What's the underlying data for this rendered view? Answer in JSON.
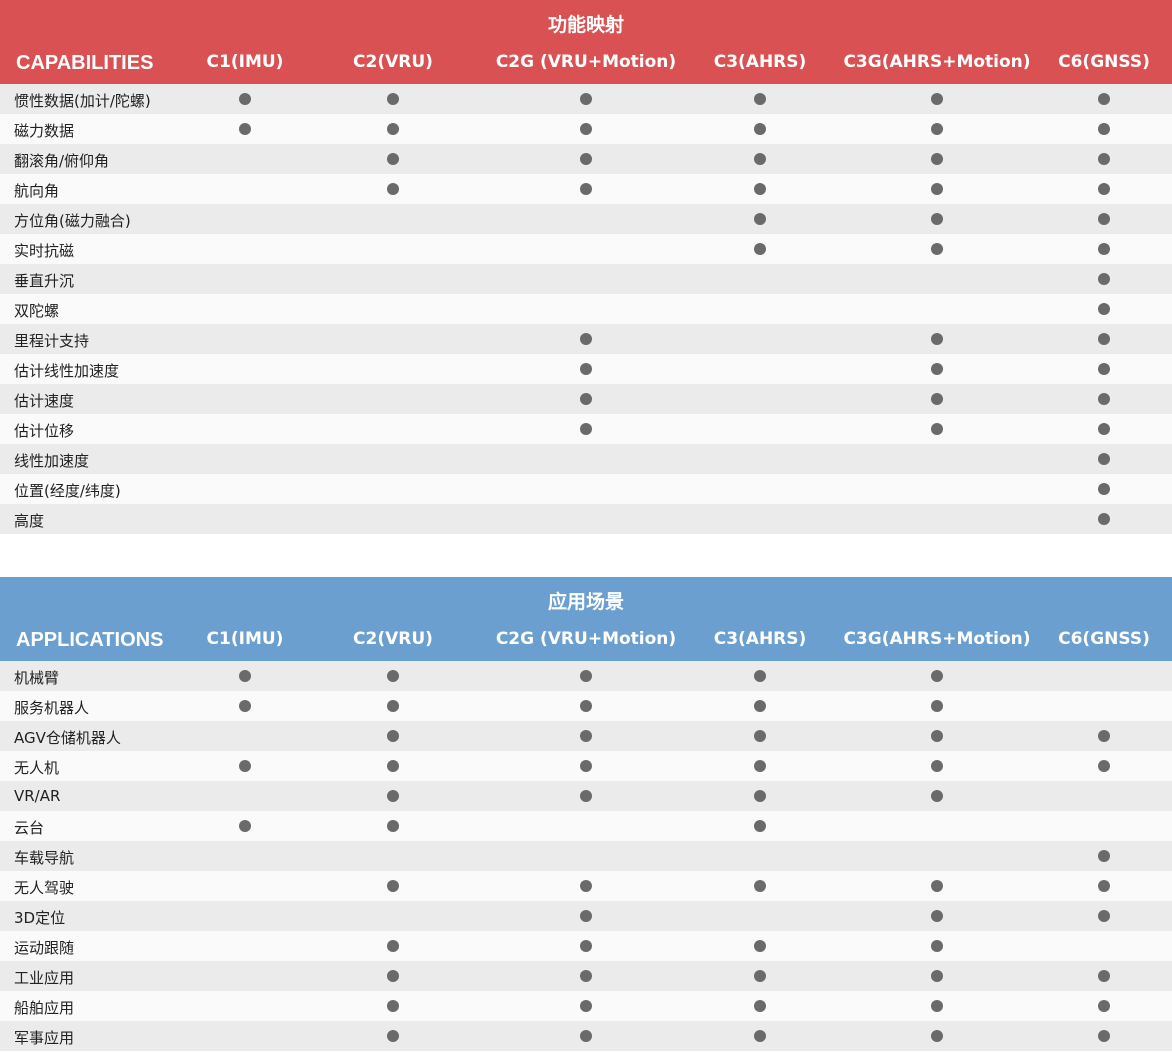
{
  "capabilities": {
    "title": "功能映射",
    "corner": "CAPABILITIES",
    "color": "#d95153",
    "columns": [
      "C1(IMU)",
      "C2(VRU)",
      "C2G (VRU+Motion)",
      "C3(AHRS)",
      "C3G(AHRS+Motion)",
      "C6(GNSS)"
    ],
    "rows": [
      {
        "label": "惯性数据(加计/陀螺)",
        "marks": [
          1,
          1,
          1,
          1,
          1,
          1
        ]
      },
      {
        "label": "磁力数据",
        "marks": [
          1,
          1,
          1,
          1,
          1,
          1
        ]
      },
      {
        "label": "翻滚角/俯仰角",
        "marks": [
          0,
          1,
          1,
          1,
          1,
          1
        ]
      },
      {
        "label": "航向角",
        "marks": [
          0,
          1,
          1,
          1,
          1,
          1
        ]
      },
      {
        "label": "方位角(磁力融合)",
        "marks": [
          0,
          0,
          0,
          1,
          1,
          1
        ]
      },
      {
        "label": "实时抗磁",
        "marks": [
          0,
          0,
          0,
          1,
          1,
          1
        ]
      },
      {
        "label": "垂直升沉",
        "marks": [
          0,
          0,
          0,
          0,
          0,
          1
        ]
      },
      {
        "label": "双陀螺",
        "marks": [
          0,
          0,
          0,
          0,
          0,
          1
        ]
      },
      {
        "label": "里程计支持",
        "marks": [
          0,
          0,
          1,
          0,
          1,
          1
        ]
      },
      {
        "label": "估计线性加速度",
        "marks": [
          0,
          0,
          1,
          0,
          1,
          1
        ]
      },
      {
        "label": "估计速度",
        "marks": [
          0,
          0,
          1,
          0,
          1,
          1
        ]
      },
      {
        "label": "估计位移",
        "marks": [
          0,
          0,
          1,
          0,
          1,
          1
        ]
      },
      {
        "label": "线性加速度",
        "marks": [
          0,
          0,
          0,
          0,
          0,
          1
        ]
      },
      {
        "label": "位置(经度/纬度)",
        "marks": [
          0,
          0,
          0,
          0,
          0,
          1
        ]
      },
      {
        "label": "高度",
        "marks": [
          0,
          0,
          0,
          0,
          0,
          1
        ]
      }
    ]
  },
  "applications": {
    "title": "应用场景",
    "corner": "APPLICATIONS",
    "color": "#6a9fcf",
    "columns": [
      "C1(IMU)",
      "C2(VRU)",
      "C2G (VRU+Motion)",
      "C3(AHRS)",
      "C3G(AHRS+Motion)",
      "C6(GNSS)"
    ],
    "rows": [
      {
        "label": "机械臂",
        "marks": [
          1,
          1,
          1,
          1,
          1,
          0
        ]
      },
      {
        "label": "服务机器人",
        "marks": [
          1,
          1,
          1,
          1,
          1,
          0
        ]
      },
      {
        "label": "AGV仓储机器人",
        "marks": [
          0,
          1,
          1,
          1,
          1,
          1
        ]
      },
      {
        "label": "无人机",
        "marks": [
          1,
          1,
          1,
          1,
          1,
          1
        ]
      },
      {
        "label": "VR/AR",
        "marks": [
          0,
          1,
          1,
          1,
          1,
          0
        ]
      },
      {
        "label": "云台",
        "marks": [
          1,
          1,
          0,
          1,
          0,
          0
        ]
      },
      {
        "label": "车载导航",
        "marks": [
          0,
          0,
          0,
          0,
          0,
          1
        ]
      },
      {
        "label": "无人驾驶",
        "marks": [
          0,
          1,
          1,
          1,
          1,
          1
        ]
      },
      {
        "label": "3D定位",
        "marks": [
          0,
          0,
          1,
          0,
          1,
          1
        ]
      },
      {
        "label": "运动跟随",
        "marks": [
          0,
          1,
          1,
          1,
          1,
          0
        ]
      },
      {
        "label": "工业应用",
        "marks": [
          0,
          1,
          1,
          1,
          1,
          1
        ]
      },
      {
        "label": "船舶应用",
        "marks": [
          0,
          1,
          1,
          1,
          1,
          1
        ]
      },
      {
        "label": "军事应用",
        "marks": [
          0,
          1,
          1,
          1,
          1,
          1
        ]
      }
    ]
  }
}
